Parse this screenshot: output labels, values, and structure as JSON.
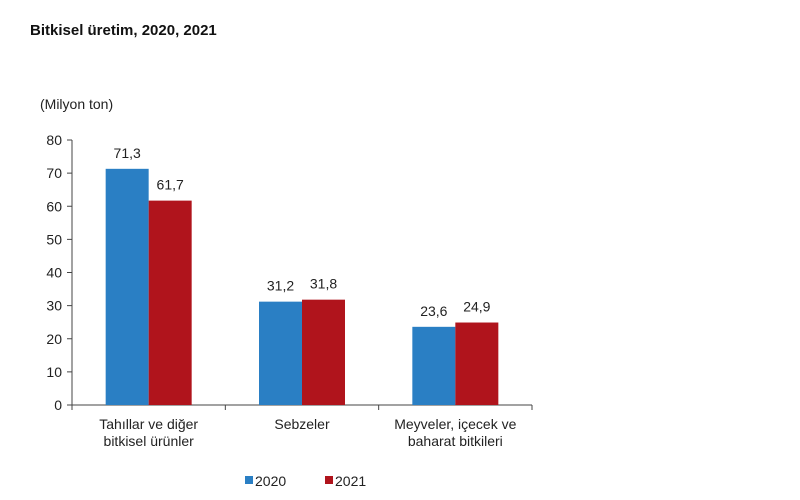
{
  "chart_data": {
    "type": "bar",
    "title": "Bitkisel üretim, 2020, 2021",
    "ylabel": "(Milyon ton)",
    "xlabel": "",
    "ylim": [
      0,
      80
    ],
    "yticks": [
      0,
      10,
      20,
      30,
      40,
      50,
      60,
      70,
      80
    ],
    "categories": [
      [
        "Tahıllar ve diğer",
        "bitkisel ürünler"
      ],
      [
        "Sebzeler"
      ],
      [
        "Meyveler, içecek ve",
        "baharat  bitkileri"
      ]
    ],
    "series": [
      {
        "name": "2020",
        "color": "#2a7fc4",
        "values": [
          71.3,
          31.2,
          23.6
        ],
        "labels": [
          "71,3",
          "31,2",
          "23,6"
        ]
      },
      {
        "name": "2021",
        "color": "#b0141c",
        "values": [
          61.7,
          31.8,
          24.9
        ],
        "labels": [
          "61,7",
          "31,8",
          "24,9"
        ]
      }
    ],
    "grid": false,
    "legend": "bottom"
  }
}
